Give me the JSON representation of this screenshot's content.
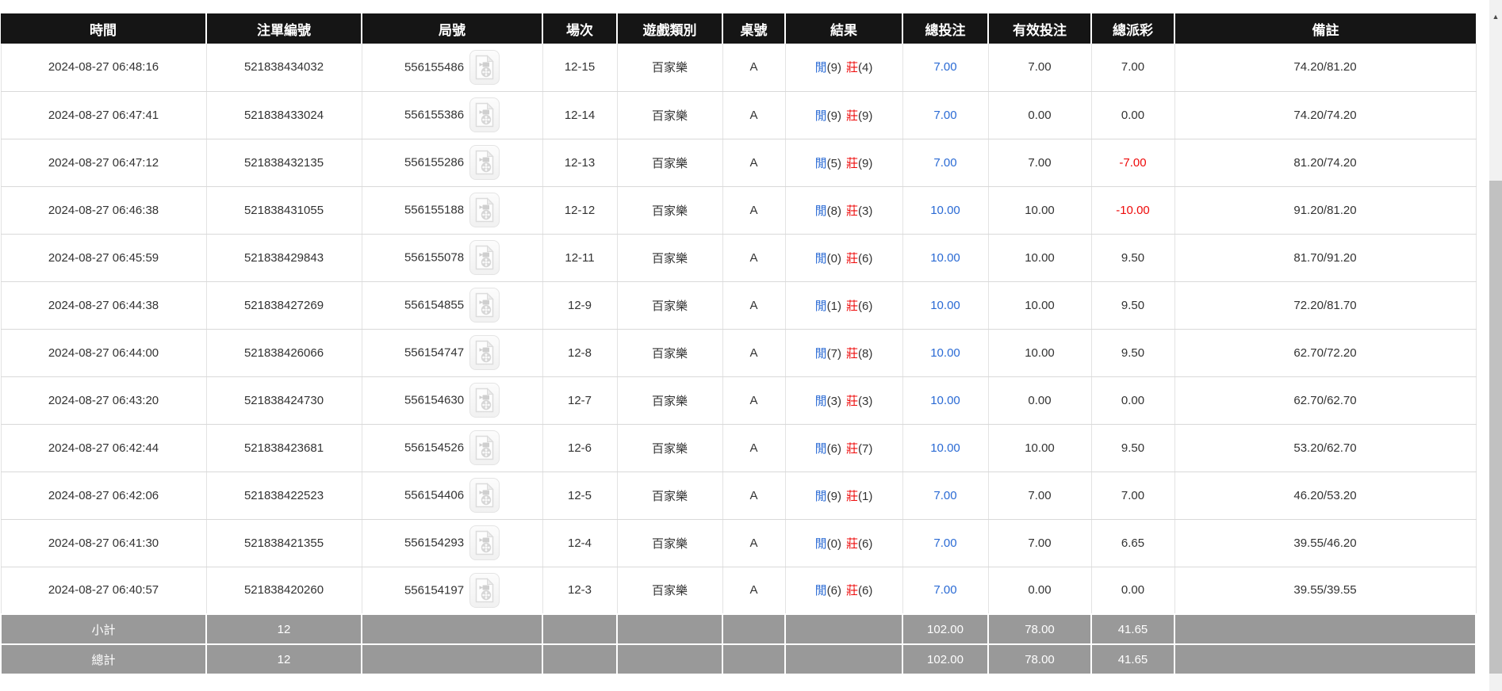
{
  "colors": {
    "link_blue": "#2a6ad4",
    "loss_red": "#ee0a0a",
    "header_bg": "#151515",
    "summary_bg": "#999999"
  },
  "scrollbar": {
    "up_arrow": "▲"
  },
  "table": {
    "columns": [
      {
        "key": "time",
        "label": "時間"
      },
      {
        "key": "bet-id",
        "label": "注單編號"
      },
      {
        "key": "round",
        "label": "局號"
      },
      {
        "key": "session",
        "label": "場次"
      },
      {
        "key": "game-type",
        "label": "遊戲類別"
      },
      {
        "key": "table-no",
        "label": "桌號"
      },
      {
        "key": "result",
        "label": "結果"
      },
      {
        "key": "total-bet",
        "label": "總投注"
      },
      {
        "key": "valid-bet",
        "label": "有效投注"
      },
      {
        "key": "payout",
        "label": "總派彩"
      },
      {
        "key": "remark",
        "label": "備註"
      }
    ],
    "rows": [
      {
        "time": "2024-08-27 06:48:16",
        "bet_id": "521838434032",
        "round": "556155486",
        "session": "12-15",
        "game_type": "百家樂",
        "table_no": "A",
        "result": {
          "player_label": "閒",
          "player_pts": "(9)",
          "banker_label": "莊",
          "banker_pts": "(4)"
        },
        "total_bet": "7.00",
        "valid_bet": "7.00",
        "payout": "7.00",
        "remark": "74.20/81.20"
      },
      {
        "time": "2024-08-27 06:47:41",
        "bet_id": "521838433024",
        "round": "556155386",
        "session": "12-14",
        "game_type": "百家樂",
        "table_no": "A",
        "result": {
          "player_label": "閒",
          "player_pts": "(9)",
          "banker_label": "莊",
          "banker_pts": "(9)"
        },
        "total_bet": "7.00",
        "valid_bet": "0.00",
        "payout": "0.00",
        "remark": "74.20/74.20"
      },
      {
        "time": "2024-08-27 06:47:12",
        "bet_id": "521838432135",
        "round": "556155286",
        "session": "12-13",
        "game_type": "百家樂",
        "table_no": "A",
        "result": {
          "player_label": "閒",
          "player_pts": "(5)",
          "banker_label": "莊",
          "banker_pts": "(9)"
        },
        "total_bet": "7.00",
        "valid_bet": "7.00",
        "payout": "-7.00",
        "remark": "81.20/74.20"
      },
      {
        "time": "2024-08-27 06:46:38",
        "bet_id": "521838431055",
        "round": "556155188",
        "session": "12-12",
        "game_type": "百家樂",
        "table_no": "A",
        "result": {
          "player_label": "閒",
          "player_pts": "(8)",
          "banker_label": "莊",
          "banker_pts": "(3)"
        },
        "total_bet": "10.00",
        "valid_bet": "10.00",
        "payout": "-10.00",
        "remark": "91.20/81.20"
      },
      {
        "time": "2024-08-27 06:45:59",
        "bet_id": "521838429843",
        "round": "556155078",
        "session": "12-11",
        "game_type": "百家樂",
        "table_no": "A",
        "result": {
          "player_label": "閒",
          "player_pts": "(0)",
          "banker_label": "莊",
          "banker_pts": "(6)"
        },
        "total_bet": "10.00",
        "valid_bet": "10.00",
        "payout": "9.50",
        "remark": "81.70/91.20"
      },
      {
        "time": "2024-08-27 06:44:38",
        "bet_id": "521838427269",
        "round": "556154855",
        "session": "12-9",
        "game_type": "百家樂",
        "table_no": "A",
        "result": {
          "player_label": "閒",
          "player_pts": "(1)",
          "banker_label": "莊",
          "banker_pts": "(6)"
        },
        "total_bet": "10.00",
        "valid_bet": "10.00",
        "payout": "9.50",
        "remark": "72.20/81.70"
      },
      {
        "time": "2024-08-27 06:44:00",
        "bet_id": "521838426066",
        "round": "556154747",
        "session": "12-8",
        "game_type": "百家樂",
        "table_no": "A",
        "result": {
          "player_label": "閒",
          "player_pts": "(7)",
          "banker_label": "莊",
          "banker_pts": "(8)"
        },
        "total_bet": "10.00",
        "valid_bet": "10.00",
        "payout": "9.50",
        "remark": "62.70/72.20"
      },
      {
        "time": "2024-08-27 06:43:20",
        "bet_id": "521838424730",
        "round": "556154630",
        "session": "12-7",
        "game_type": "百家樂",
        "table_no": "A",
        "result": {
          "player_label": "閒",
          "player_pts": "(3)",
          "banker_label": "莊",
          "banker_pts": "(3)"
        },
        "total_bet": "10.00",
        "valid_bet": "0.00",
        "payout": "0.00",
        "remark": "62.70/62.70"
      },
      {
        "time": "2024-08-27 06:42:44",
        "bet_id": "521838423681",
        "round": "556154526",
        "session": "12-6",
        "game_type": "百家樂",
        "table_no": "A",
        "result": {
          "player_label": "閒",
          "player_pts": "(6)",
          "banker_label": "莊",
          "banker_pts": "(7)"
        },
        "total_bet": "10.00",
        "valid_bet": "10.00",
        "payout": "9.50",
        "remark": "53.20/62.70"
      },
      {
        "time": "2024-08-27 06:42:06",
        "bet_id": "521838422523",
        "round": "556154406",
        "session": "12-5",
        "game_type": "百家樂",
        "table_no": "A",
        "result": {
          "player_label": "閒",
          "player_pts": "(9)",
          "banker_label": "莊",
          "banker_pts": "(1)"
        },
        "total_bet": "7.00",
        "valid_bet": "7.00",
        "payout": "7.00",
        "remark": "46.20/53.20"
      },
      {
        "time": "2024-08-27 06:41:30",
        "bet_id": "521838421355",
        "round": "556154293",
        "session": "12-4",
        "game_type": "百家樂",
        "table_no": "A",
        "result": {
          "player_label": "閒",
          "player_pts": "(0)",
          "banker_label": "莊",
          "banker_pts": "(6)"
        },
        "total_bet": "7.00",
        "valid_bet": "7.00",
        "payout": "6.65",
        "remark": "39.55/46.20"
      },
      {
        "time": "2024-08-27 06:40:57",
        "bet_id": "521838420260",
        "round": "556154197",
        "session": "12-3",
        "game_type": "百家樂",
        "table_no": "A",
        "result": {
          "player_label": "閒",
          "player_pts": "(6)",
          "banker_label": "莊",
          "banker_pts": "(6)"
        },
        "total_bet": "7.00",
        "valid_bet": "0.00",
        "payout": "0.00",
        "remark": "39.55/39.55"
      }
    ],
    "footer": [
      {
        "label": "小計",
        "count": "12",
        "total_bet": "102.00",
        "valid_bet": "78.00",
        "payout": "41.65"
      },
      {
        "label": "總計",
        "count": "12",
        "total_bet": "102.00",
        "valid_bet": "78.00",
        "payout": "41.65"
      }
    ]
  }
}
